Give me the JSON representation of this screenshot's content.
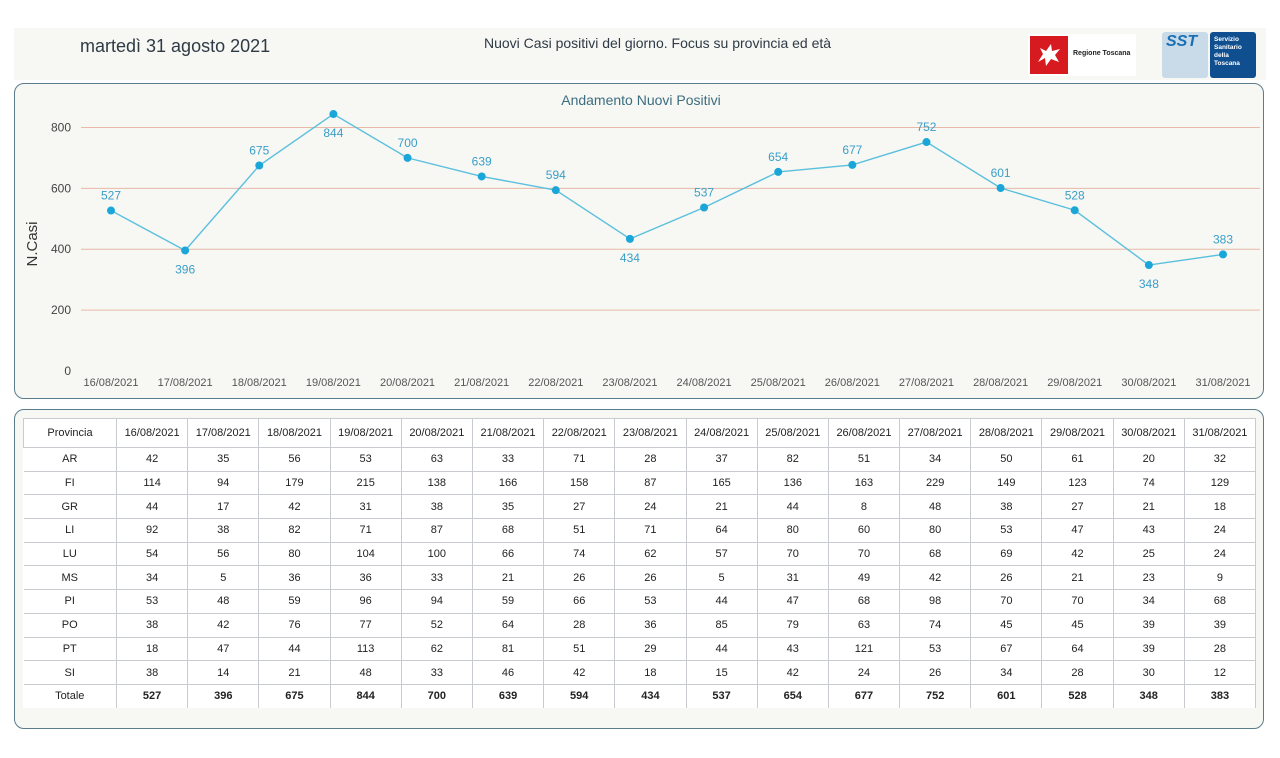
{
  "header": {
    "date": "martedì 31 agosto 2021",
    "subtitle": "Nuovi Casi positivi del giorno. Focus su provincia ed età",
    "logo_regione": "Regione Toscana",
    "logo_sst_abbr": "SST",
    "logo_sst_lines": [
      "Servizio",
      "Sanitario",
      "della",
      "Toscana"
    ]
  },
  "colors": {
    "line": "#5bc0de",
    "marker": "#1aa6d8",
    "grid": "#e8b9a8",
    "label": "#3a9fc9"
  },
  "chart_data": {
    "type": "line",
    "title": "Andamento Nuovi Positivi",
    "ylabel": "N.Casi",
    "xlabel": "",
    "ylim": [
      0,
      900
    ],
    "yticks": [
      0,
      200,
      400,
      600,
      800
    ],
    "categories": [
      "16/08/2021",
      "17/08/2021",
      "18/08/2021",
      "19/08/2021",
      "20/08/2021",
      "21/08/2021",
      "22/08/2021",
      "23/08/2021",
      "24/08/2021",
      "25/08/2021",
      "26/08/2021",
      "27/08/2021",
      "28/08/2021",
      "29/08/2021",
      "30/08/2021",
      "31/08/2021"
    ],
    "values": [
      527,
      396,
      675,
      844,
      700,
      639,
      594,
      434,
      537,
      654,
      677,
      752,
      601,
      528,
      348,
      383
    ],
    "label_position": [
      "above",
      "below",
      "above",
      "below",
      "above",
      "above",
      "above",
      "below",
      "above",
      "above",
      "above",
      "above",
      "above",
      "above",
      "below",
      "above"
    ],
    "grid": true
  },
  "table": {
    "header_first": "Provincia",
    "dates": [
      "16/08/2021",
      "17/08/2021",
      "18/08/2021",
      "19/08/2021",
      "20/08/2021",
      "21/08/2021",
      "22/08/2021",
      "23/08/2021",
      "24/08/2021",
      "25/08/2021",
      "26/08/2021",
      "27/08/2021",
      "28/08/2021",
      "29/08/2021",
      "30/08/2021",
      "31/08/2021"
    ],
    "rows": [
      {
        "name": "AR",
        "values": [
          42,
          35,
          56,
          53,
          63,
          33,
          71,
          28,
          37,
          82,
          51,
          34,
          50,
          61,
          20,
          32
        ]
      },
      {
        "name": "FI",
        "values": [
          114,
          94,
          179,
          215,
          138,
          166,
          158,
          87,
          165,
          136,
          163,
          229,
          149,
          123,
          74,
          129
        ]
      },
      {
        "name": "GR",
        "values": [
          44,
          17,
          42,
          31,
          38,
          35,
          27,
          24,
          21,
          44,
          8,
          48,
          38,
          27,
          21,
          18
        ]
      },
      {
        "name": "LI",
        "values": [
          92,
          38,
          82,
          71,
          87,
          68,
          51,
          71,
          64,
          80,
          60,
          80,
          53,
          47,
          43,
          24
        ]
      },
      {
        "name": "LU",
        "values": [
          54,
          56,
          80,
          104,
          100,
          66,
          74,
          62,
          57,
          70,
          70,
          68,
          69,
          42,
          25,
          24
        ]
      },
      {
        "name": "MS",
        "values": [
          34,
          5,
          36,
          36,
          33,
          21,
          26,
          26,
          5,
          31,
          49,
          42,
          26,
          21,
          23,
          9
        ]
      },
      {
        "name": "PI",
        "values": [
          53,
          48,
          59,
          96,
          94,
          59,
          66,
          53,
          44,
          47,
          68,
          98,
          70,
          70,
          34,
          68
        ]
      },
      {
        "name": "PO",
        "values": [
          38,
          42,
          76,
          77,
          52,
          64,
          28,
          36,
          85,
          79,
          63,
          74,
          45,
          45,
          39,
          39
        ]
      },
      {
        "name": "PT",
        "values": [
          18,
          47,
          44,
          113,
          62,
          81,
          51,
          29,
          44,
          43,
          121,
          53,
          67,
          64,
          39,
          28
        ]
      },
      {
        "name": "SI",
        "values": [
          38,
          14,
          21,
          48,
          33,
          46,
          42,
          18,
          15,
          42,
          24,
          26,
          34,
          28,
          30,
          12
        ]
      }
    ],
    "total_label": "Totale",
    "totals": [
      527,
      396,
      675,
      844,
      700,
      639,
      594,
      434,
      537,
      654,
      677,
      752,
      601,
      528,
      348,
      383
    ]
  }
}
